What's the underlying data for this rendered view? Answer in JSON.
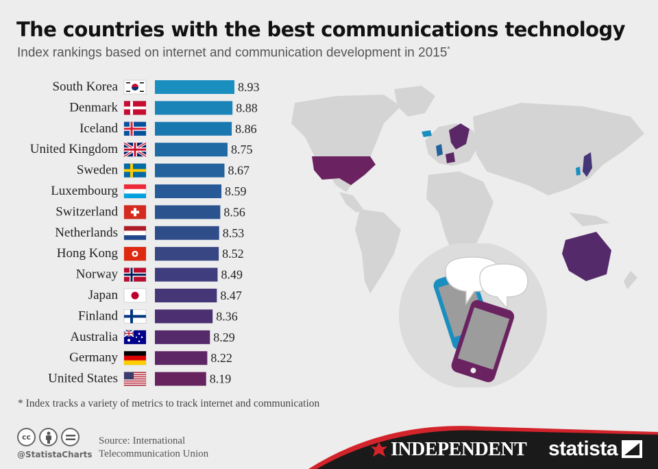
{
  "header": {
    "title": "The countries with the best communications technology",
    "subtitle": "Index rankings based on internet and communication development in 2015",
    "subtitle_mark": "*"
  },
  "chart_data": {
    "type": "bar",
    "orientation": "horizontal",
    "categories": [
      "South Korea",
      "Denmark",
      "Iceland",
      "United Kingdom",
      "Sweden",
      "Luxembourg",
      "Switzerland",
      "Netherlands",
      "Hong Kong",
      "Norway",
      "Japan",
      "Finland",
      "Australia",
      "Germany",
      "United States"
    ],
    "values": [
      8.93,
      8.88,
      8.86,
      8.75,
      8.67,
      8.59,
      8.56,
      8.53,
      8.52,
      8.49,
      8.47,
      8.36,
      8.29,
      8.22,
      8.19
    ],
    "value_labels": [
      "8.93",
      "8.88",
      "8.86",
      "8.75",
      "8.67",
      "8.59",
      "8.56",
      "8.53",
      "8.52",
      "8.49",
      "8.47",
      "8.36",
      "8.29",
      "8.22",
      "8.19"
    ],
    "bar_colors": [
      "#1a8fbf",
      "#1a83b8",
      "#1a78b0",
      "#1f6aa4",
      "#23629c",
      "#275a96",
      "#2b548f",
      "#2f4e89",
      "#384683",
      "#3f3d7d",
      "#453677",
      "#4b2f71",
      "#542a6a",
      "#5d2664",
      "#66235e"
    ],
    "grid": false,
    "legend": "none"
  },
  "flags": [
    "south-korea-flag",
    "denmark-flag",
    "iceland-flag",
    "united-kingdom-flag",
    "sweden-flag",
    "luxembourg-flag",
    "switzerland-flag",
    "netherlands-flag",
    "hong-kong-flag",
    "norway-flag",
    "japan-flag",
    "finland-flag",
    "australia-flag",
    "germany-flag",
    "united-states-flag"
  ],
  "footnote": "* Index tracks a variety of metrics to track internet and communication",
  "footer": {
    "license_icons": [
      "cc-icon",
      "by-icon",
      "equals-icon"
    ],
    "cc_text": "cc",
    "handle": "@StatistaCharts",
    "source_line1": "Source: International",
    "source_line2": "Telecommunication Union",
    "publisher": "INDEPENDENT",
    "brand": "statista"
  },
  "colors": {
    "background": "#ededed",
    "map_land": "#d4d4d4",
    "highlight_purple": "#6a2360",
    "highlight_blue": "#1a8fbf",
    "footer_dark": "#1a1a1a",
    "footer_red": "#d3242b"
  }
}
